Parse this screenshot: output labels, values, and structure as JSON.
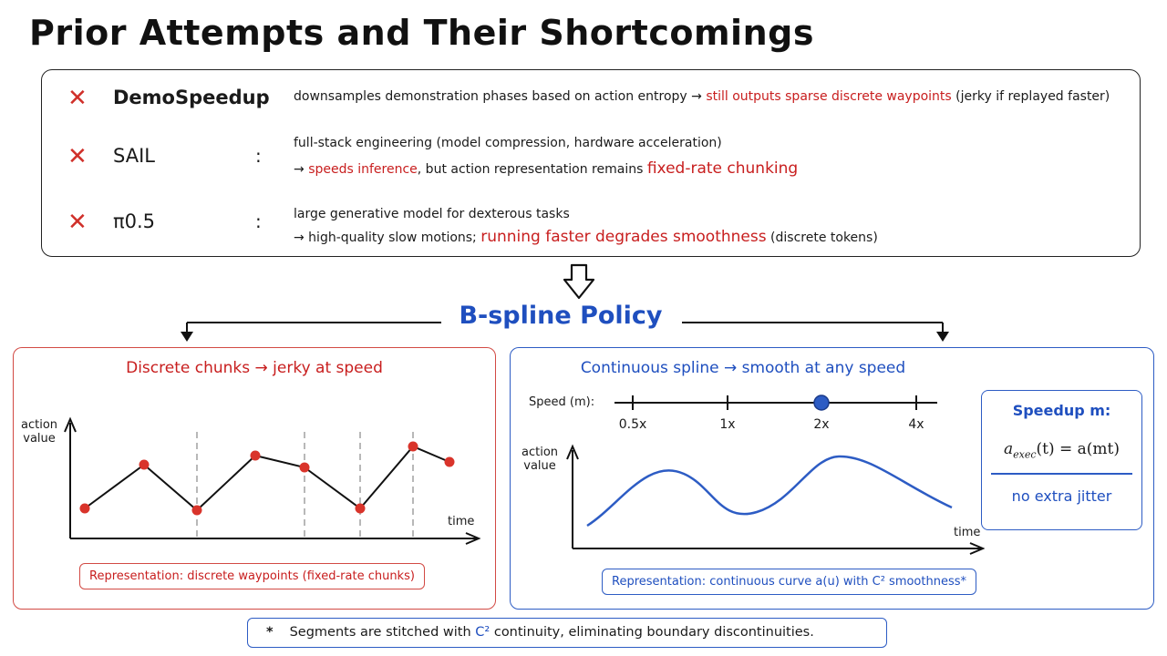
{
  "title": "Prior Attempts and Their Shortcomings",
  "prior_attempts": [
    {
      "mark": "✕",
      "method": "DemoSpeedup",
      "colon": ":",
      "line1_pre": "downsamples demonstration phases based on action entropy → ",
      "line1_hl": "still outputs sparse discrete waypoints",
      "line1_post": " (jerky if replayed faster)"
    },
    {
      "mark": "✕",
      "method": "SAIL",
      "colon": ":",
      "line1": "full-stack engineering (model compression, hardware acceleration)",
      "line2_pre": "→ ",
      "line2_hl1": "speeds inference",
      "line2_mid": ", but action representation remains ",
      "line2_hl2": "fixed-rate chunking"
    },
    {
      "mark": "✕",
      "method": "π0.5",
      "colon": ":",
      "line1": "large generative model for dexterous tasks",
      "line2_pre": "→ high-quality slow motions; ",
      "line2_hl": "running faster degrades smoothness",
      "line2_post": " (discrete tokens)"
    }
  ],
  "policy_title": "B-spline Policy",
  "left_panel": {
    "heading": "Discrete chunks → jerky at speed",
    "y_label": "action\nvalue",
    "x_label": "time",
    "representation": "Representation: discrete waypoints (fixed-rate chunks)"
  },
  "right_panel": {
    "heading": "Continuous spline → smooth at any speed",
    "speed_label": "Speed (m):",
    "speed_ticks": [
      "0.5x",
      "1x",
      "2x",
      "4x"
    ],
    "selected_speed": "2x",
    "y_label": "action\nvalue",
    "x_label": "time",
    "representation": "Representation: continuous curve a(u) with C² smoothness*",
    "speedup": {
      "title": "Speedup m:",
      "formula_a": "a",
      "formula_sub": "exec",
      "formula_rest": "(t) = a(mt)",
      "note": "no extra jitter"
    }
  },
  "footnote": {
    "star": "*",
    "text_pre": "Segments are stitched with ",
    "text_hl": "C²",
    "text_post": " continuity, eliminating boundary discontinuities."
  },
  "colors": {
    "red": "#c81e1e",
    "blue": "#1f4fbf",
    "dot_red": "#d9342b",
    "dot_blue": "#2d5cc4"
  }
}
